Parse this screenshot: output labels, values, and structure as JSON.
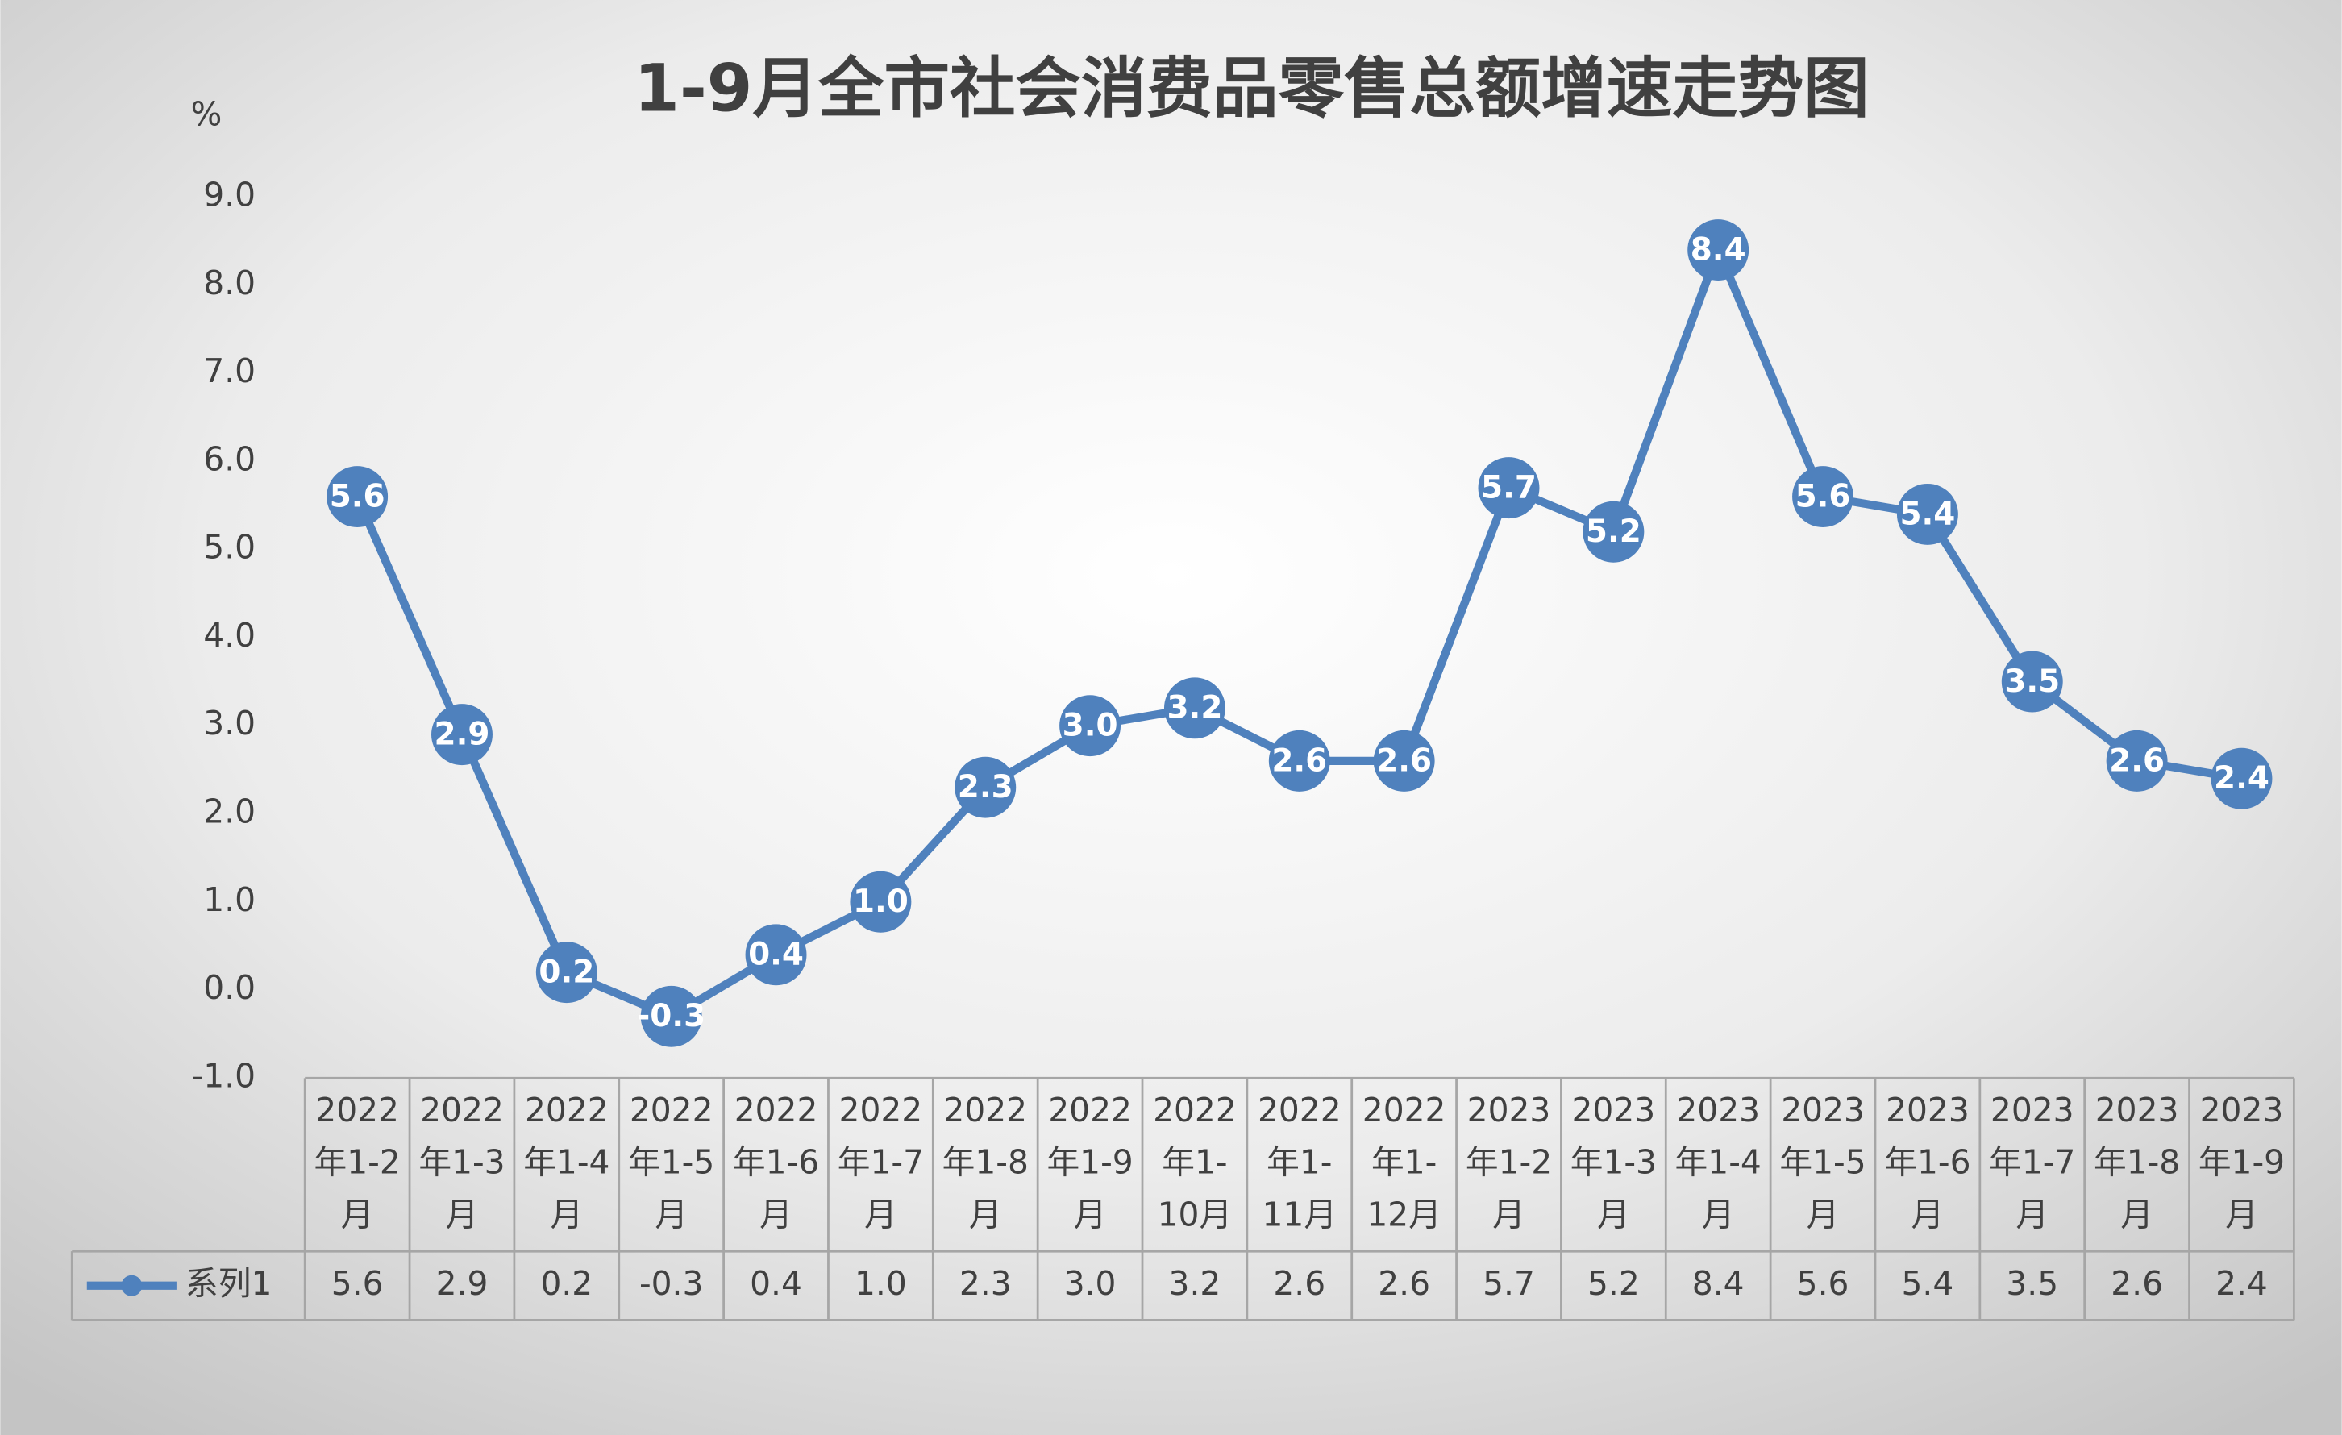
{
  "chart_data": {
    "type": "line",
    "title": "1-9月全市社会消费品零售总额增速走势图",
    "y_label": "%",
    "categories": [
      "2022年1-2月",
      "2022年1-3月",
      "2022年1-4月",
      "2022年1-5月",
      "2022年1-6月",
      "2022年1-7月",
      "2022年1-8月",
      "2022年1-9月",
      "2022年1-10月",
      "2022年1-11月",
      "2022年1-12月",
      "2023年1-2月",
      "2023年1-3月",
      "2023年1-4月",
      "2023年1-5月",
      "2023年1-6月",
      "2023年1-7月",
      "2023年1-8月",
      "2023年1-9月"
    ],
    "series": [
      {
        "name": "系列1",
        "color": "#4f81bd",
        "values": [
          5.6,
          2.9,
          0.2,
          -0.3,
          0.4,
          1.0,
          2.3,
          3.0,
          3.2,
          2.6,
          2.6,
          5.7,
          5.2,
          8.4,
          5.6,
          5.4,
          3.5,
          2.6,
          2.4
        ],
        "value_labels": [
          "5.6",
          "2.9",
          "0.2",
          "-0.3",
          "0.4",
          "1.0",
          "2.3",
          "3.0",
          "3.2",
          "2.6",
          "2.6",
          "5.7",
          "5.2",
          "8.4",
          "5.6",
          "5.4",
          "3.5",
          "2.6",
          "2.4"
        ]
      }
    ],
    "ylim": [
      -1,
      9
    ],
    "yticks": [
      {
        "value": -1,
        "label": "-1.0"
      },
      {
        "value": 0,
        "label": "0.0"
      },
      {
        "value": 1,
        "label": "1.0"
      },
      {
        "value": 2,
        "label": "2.0"
      },
      {
        "value": 3,
        "label": "3.0"
      },
      {
        "value": 4,
        "label": "4.0"
      },
      {
        "value": 5,
        "label": "5.0"
      },
      {
        "value": 6,
        "label": "6.0"
      },
      {
        "value": 7,
        "label": "7.0"
      },
      {
        "value": 8,
        "label": "8.0"
      },
      {
        "value": 9,
        "label": "9.0"
      }
    ],
    "grid": false,
    "data_table": true
  }
}
